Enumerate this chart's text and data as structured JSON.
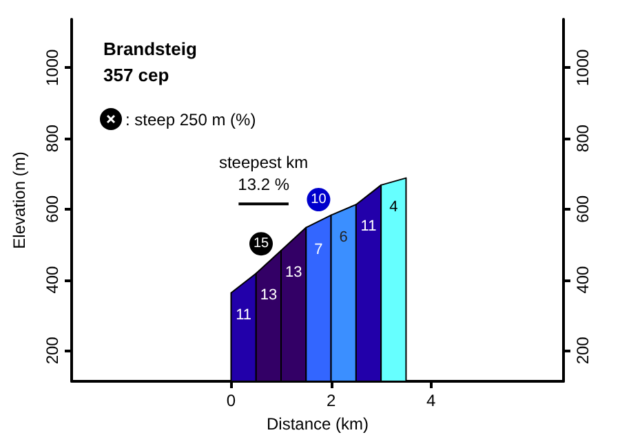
{
  "chart_data": {
    "type": "area",
    "title": "Brandsteig",
    "subtitle": "357 cep",
    "xlabel": "Distance (km)",
    "ylabel": "Elevation (m)",
    "xlim": [
      -3.19,
      6.65
    ],
    "xticks": [
      0,
      2,
      4
    ],
    "ylim": [
      113,
      1137
    ],
    "yticks": [
      200,
      400,
      600,
      800,
      1000
    ],
    "y2lim": [
      113,
      1137
    ],
    "y2ticks": [
      200,
      400,
      600,
      800,
      1000
    ],
    "grid": false,
    "series": [
      {
        "color": "#2200aa",
        "x": [
          0,
          0.5
        ],
        "values": [
          363,
          418
        ]
      },
      {
        "color": "#330066",
        "x": [
          0.5,
          1.0
        ],
        "values": [
          418,
          483
        ]
      },
      {
        "color": "#330066",
        "x": [
          1.0,
          1.5
        ],
        "values": [
          483,
          548
        ]
      },
      {
        "color": "#3366ff",
        "x": [
          1.5,
          2.0
        ],
        "values": [
          548,
          583
        ]
      },
      {
        "color": "#3b8fff",
        "x": [
          2.0,
          2.5
        ],
        "values": [
          583,
          613
        ]
      },
      {
        "color": "#2200aa",
        "x": [
          2.5,
          3.0
        ],
        "values": [
          613,
          668
        ]
      },
      {
        "color": "#66ffff",
        "x": [
          3.0,
          3.5
        ],
        "values": [
          668,
          688
        ]
      },
      {
        "type": "line",
        "color": "#000000",
        "x": [
          0.15,
          1.15
        ],
        "values": [
          615,
          615
        ],
        "marker": "none"
      },
      {
        "type": "scatter",
        "x": [
          0.6,
          1.75
        ],
        "values": [
          502,
          627
        ],
        "colors": [
          "#000000",
          "#0000cc"
        ],
        "marker": "circle"
      }
    ],
    "annotations": [
      {
        "text": "15",
        "x": 0.6,
        "y": 502
      },
      {
        "text": "10",
        "x": 1.75,
        "y": 627
      },
      "11",
      "13",
      "13",
      "7",
      "6",
      "11",
      "4",
      "steepest km",
      "13.2 %",
      ": steep 250 m (%)"
    ]
  }
}
